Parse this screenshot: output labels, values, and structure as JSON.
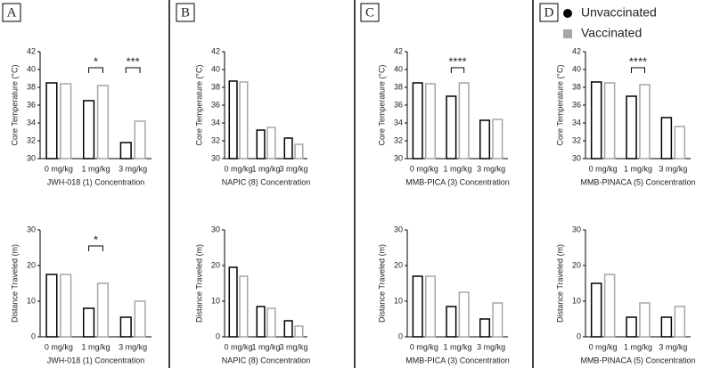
{
  "panels": [
    "A",
    "B",
    "C",
    "D"
  ],
  "chart_data": [
    {
      "type": "bar",
      "xlabel": "JWH-018 (1) Concentration",
      "ylabel": "Core Temperature (°C)",
      "categories": [
        "0 mg/kg",
        "1 mg/kg",
        "3 mg/kg"
      ],
      "series": [
        {
          "name": "Unvaccinated",
          "color": "#000000",
          "values": [
            38.5,
            36.5,
            31.8
          ]
        },
        {
          "name": "Vaccinated",
          "color": "#a6a6a6",
          "values": [
            38.4,
            38.2,
            34.2
          ]
        }
      ],
      "ylim": [
        30,
        42
      ],
      "yticks": [
        30,
        32,
        34,
        36,
        38,
        40,
        42
      ],
      "annotations": [
        {
          "text": "*",
          "category": "1 mg/kg"
        },
        {
          "text": "***",
          "category": "3 mg/kg"
        }
      ]
    },
    {
      "type": "bar",
      "xlabel": "NAPIC (8) Concentration",
      "ylabel": "Core Temperature (°C)",
      "categories": [
        "0 mg/kg",
        "1 mg/kg",
        "3 mg/kg"
      ],
      "series": [
        {
          "name": "Unvaccinated",
          "color": "#000000",
          "values": [
            38.7,
            33.2,
            32.3
          ]
        },
        {
          "name": "Vaccinated",
          "color": "#a6a6a6",
          "values": [
            38.6,
            33.5,
            31.6
          ]
        }
      ],
      "ylim": [
        30,
        42
      ],
      "yticks": [
        30,
        32,
        34,
        36,
        38,
        40,
        42
      ],
      "annotations": []
    },
    {
      "type": "bar",
      "xlabel": "MMB-PICA (3) Concentration",
      "ylabel": "Core Temperature (°C)",
      "categories": [
        "0 mg/kg",
        "1 mg/kg",
        "3 mg/kg"
      ],
      "series": [
        {
          "name": "Unvaccinated",
          "color": "#000000",
          "values": [
            38.5,
            37.0,
            34.3
          ]
        },
        {
          "name": "Vaccinated",
          "color": "#a6a6a6",
          "values": [
            38.4,
            38.5,
            34.4
          ]
        }
      ],
      "ylim": [
        30,
        42
      ],
      "yticks": [
        30,
        32,
        34,
        36,
        38,
        40,
        42
      ],
      "annotations": [
        {
          "text": "****",
          "category": "1 mg/kg"
        }
      ]
    },
    {
      "type": "bar",
      "xlabel": "MMB-PINACA (5) Concentration",
      "ylabel": "Core Temperature (°C)",
      "categories": [
        "0 mg/kg",
        "1 mg/kg",
        "3 mg/kg"
      ],
      "series": [
        {
          "name": "Unvaccinated",
          "color": "#000000",
          "values": [
            38.6,
            37.0,
            34.6
          ]
        },
        {
          "name": "Vaccinated",
          "color": "#a6a6a6",
          "values": [
            38.5,
            38.3,
            33.6
          ]
        }
      ],
      "ylim": [
        30,
        42
      ],
      "yticks": [
        30,
        32,
        34,
        36,
        38,
        40,
        42
      ],
      "annotations": [
        {
          "text": "****",
          "category": "1 mg/kg"
        }
      ]
    },
    {
      "type": "bar",
      "xlabel": "JWH-018 (1) Concentration",
      "ylabel": "Distance Traveled (m)",
      "categories": [
        "0 mg/kg",
        "1 mg/kg",
        "3 mg/kg"
      ],
      "series": [
        {
          "name": "Unvaccinated",
          "color": "#000000",
          "values": [
            17.5,
            8,
            5.5
          ]
        },
        {
          "name": "Vaccinated",
          "color": "#a6a6a6",
          "values": [
            17.5,
            15,
            10
          ]
        }
      ],
      "ylim": [
        0,
        30
      ],
      "yticks": [
        0,
        10,
        20,
        30
      ],
      "annotations": [
        {
          "text": "*",
          "category": "1 mg/kg"
        }
      ]
    },
    {
      "type": "bar",
      "xlabel": "NAPIC (8) Concentration",
      "ylabel": "Distance Traveled (m)",
      "categories": [
        "0 mg/kg",
        "1 mg/kg",
        "3 mg/kg"
      ],
      "series": [
        {
          "name": "Unvaccinated",
          "color": "#000000",
          "values": [
            19.5,
            8.5,
            4.5
          ]
        },
        {
          "name": "Vaccinated",
          "color": "#a6a6a6",
          "values": [
            17,
            8,
            3
          ]
        }
      ],
      "ylim": [
        0,
        30
      ],
      "yticks": [
        0,
        10,
        20,
        30
      ],
      "annotations": []
    },
    {
      "type": "bar",
      "xlabel": "MMB-PICA (3) Concentration",
      "ylabel": "Distance Traveled (m)",
      "categories": [
        "0 mg/kg",
        "1 mg/kg",
        "3 mg/kg"
      ],
      "series": [
        {
          "name": "Unvaccinated",
          "color": "#000000",
          "values": [
            17,
            8.5,
            5
          ]
        },
        {
          "name": "Vaccinated",
          "color": "#a6a6a6",
          "values": [
            17,
            12.5,
            9.5
          ]
        }
      ],
      "ylim": [
        0,
        30
      ],
      "yticks": [
        0,
        10,
        20,
        30
      ],
      "annotations": []
    },
    {
      "type": "bar",
      "xlabel": "MMB-PINACA (5) Concentration",
      "ylabel": "Distance Traveled (m)",
      "categories": [
        "0 mg/kg",
        "1 mg/kg",
        "3 mg/kg"
      ],
      "series": [
        {
          "name": "Unvaccinated",
          "color": "#000000",
          "values": [
            15,
            5.5,
            5.5
          ]
        },
        {
          "name": "Vaccinated",
          "color": "#a6a6a6",
          "values": [
            17.5,
            9.5,
            8.5
          ]
        }
      ],
      "ylim": [
        0,
        30
      ],
      "yticks": [
        0,
        10,
        20,
        30
      ],
      "annotations": []
    }
  ]
}
